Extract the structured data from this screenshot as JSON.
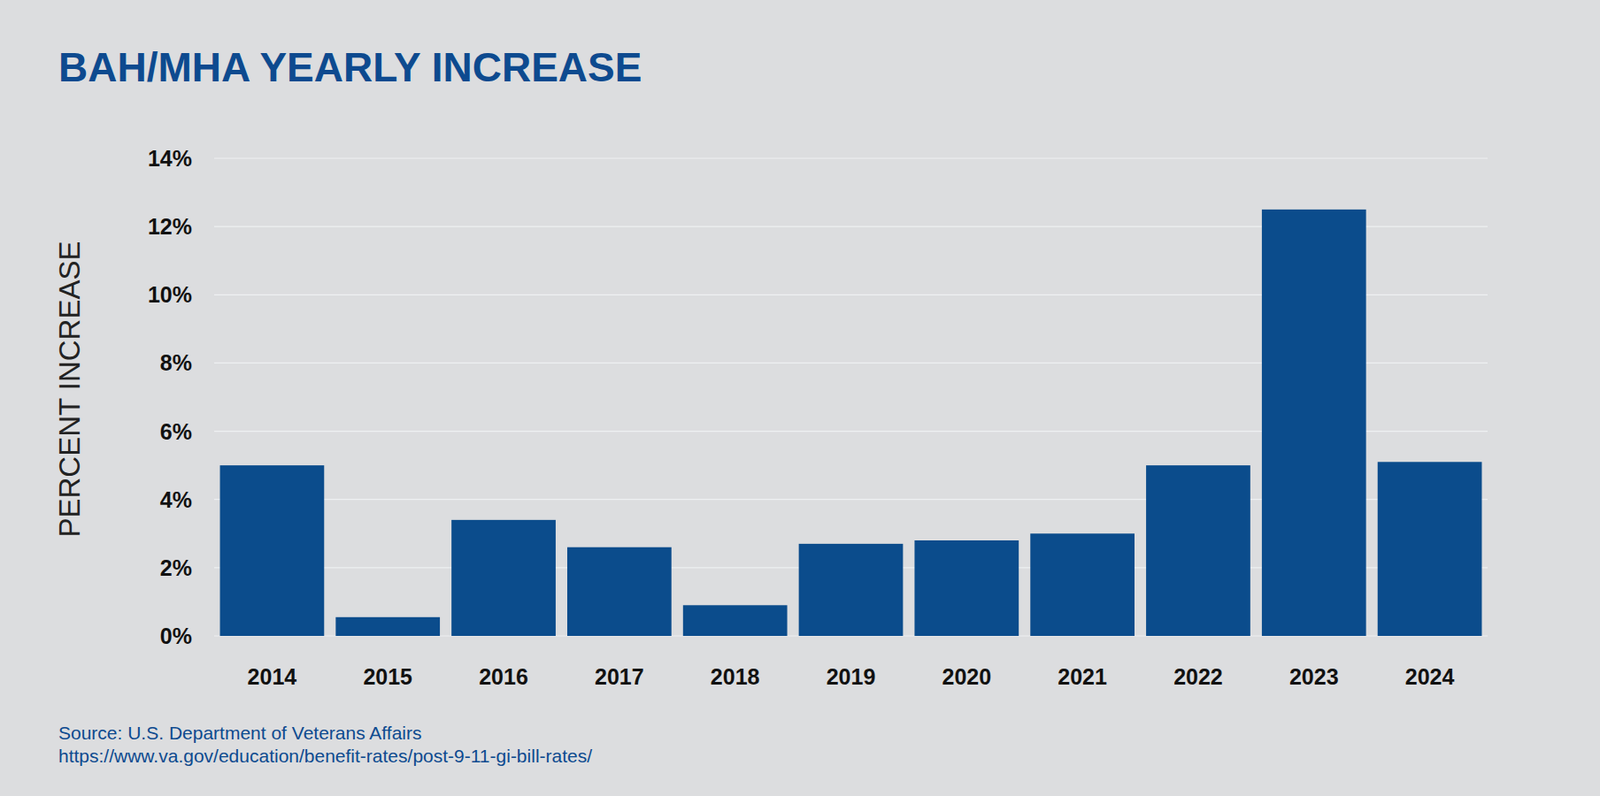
{
  "chart_data": {
    "type": "bar",
    "title": "BAH/MHA YEARLY INCREASE",
    "y_label": "PERCENT INCREASE",
    "categories": [
      "2014",
      "2015",
      "2016",
      "2017",
      "2018",
      "2019",
      "2020",
      "2021",
      "2022",
      "2023",
      "2024"
    ],
    "values": [
      5.0,
      0.55,
      3.4,
      2.6,
      0.9,
      2.7,
      2.8,
      3.0,
      5.0,
      12.5,
      5.1
    ],
    "color": "#0b4c8c",
    "ylim": [
      0,
      14
    ],
    "yticks": [
      {
        "value": 0,
        "label": "0%"
      },
      {
        "value": 2,
        "label": "2%"
      },
      {
        "value": 4,
        "label": "4%"
      },
      {
        "value": 6,
        "label": "6%"
      },
      {
        "value": 8,
        "label": "8%"
      },
      {
        "value": 10,
        "label": "10%"
      },
      {
        "value": 12,
        "label": "12%"
      },
      {
        "value": 14,
        "label": "14%"
      }
    ],
    "grid": true,
    "annotations": [
      "Source: U.S. Department of Veterans Affairs",
      "https://www.va.gov/education/benefit-rates/post-9-11-gi-bill-rates/"
    ]
  }
}
